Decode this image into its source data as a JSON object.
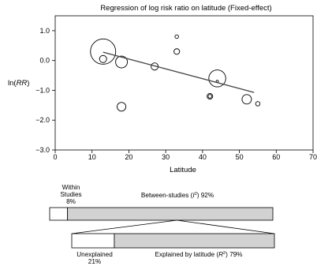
{
  "chart_data": {
    "type": "scatter",
    "title": "Regression of log risk ratio on latitude (Fixed-effect)",
    "xlabel": "Latitude",
    "ylabel": "ln(RR)",
    "xlim": [
      0,
      70
    ],
    "ylim": [
      -3.0,
      1.5
    ],
    "xticks": [
      "0",
      "10",
      "20",
      "30",
      "40",
      "50",
      "60",
      "70"
    ],
    "yticks": [
      "1.0",
      "0.0",
      "−1.0",
      "−2.0",
      "−3.0"
    ],
    "grid": false,
    "points": [
      {
        "x": 13,
        "y": 0.3,
        "weight": 1.0
      },
      {
        "x": 13,
        "y": 0.05,
        "weight": 0.08
      },
      {
        "x": 18,
        "y": -0.05,
        "weight": 0.22
      },
      {
        "x": 18,
        "y": -1.55,
        "weight": 0.12
      },
      {
        "x": 27,
        "y": -0.2,
        "weight": 0.08
      },
      {
        "x": 33,
        "y": 0.8,
        "weight": 0.02
      },
      {
        "x": 33,
        "y": 0.3,
        "weight": 0.05
      },
      {
        "x": 42,
        "y": -1.2,
        "weight": 0.05
      },
      {
        "x": 42,
        "y": -1.2,
        "weight": 0.02
      },
      {
        "x": 44,
        "y": -0.6,
        "weight": 0.45
      },
      {
        "x": 44,
        "y": -0.7,
        "weight": 0.005
      },
      {
        "x": 52,
        "y": -1.3,
        "weight": 0.14
      },
      {
        "x": 55,
        "y": -1.45,
        "weight": 0.03
      }
    ],
    "regression_line": {
      "x": [
        13,
        54
      ],
      "y": [
        0.28,
        -1.07
      ]
    }
  },
  "variance_bars": {
    "within": {
      "label_line1": "Within",
      "label_line2": "Studies",
      "value": "8%",
      "fraction": 0.08
    },
    "between": {
      "label": "Between-studies (I²) 92%",
      "fraction": 0.92
    },
    "unexplained": {
      "label": "Unexplained",
      "value": "21%",
      "fraction": 0.21
    },
    "explained": {
      "label": "Explained by latitude (R²) 79%",
      "fraction": 0.79
    }
  },
  "colors": {
    "bar_fill": "#d2d2d2",
    "stroke": "#000000"
  }
}
